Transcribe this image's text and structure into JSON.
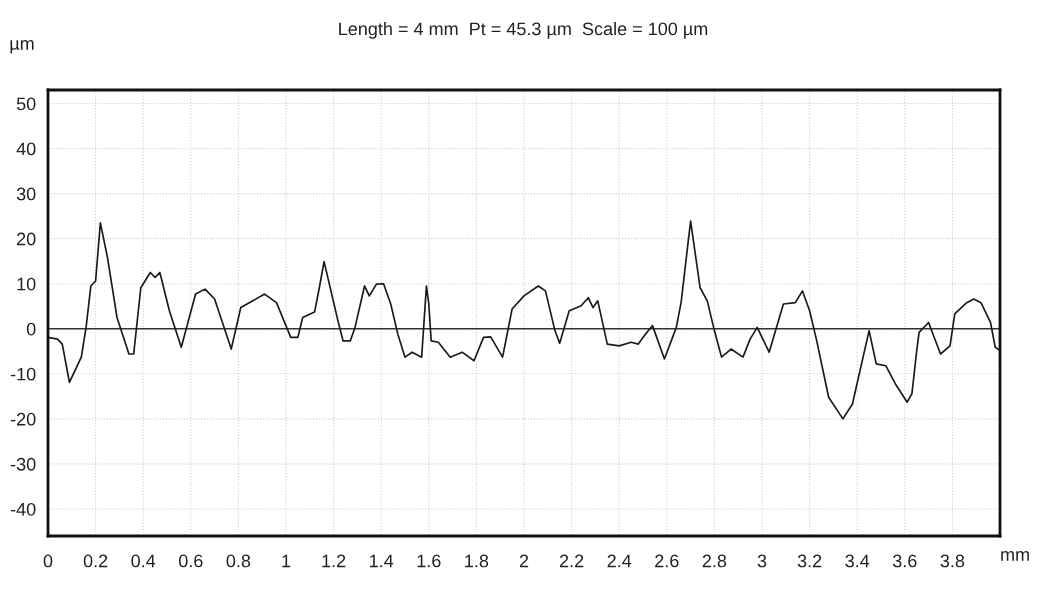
{
  "chart_data": {
    "type": "line",
    "title": "Length = 4 mm  Pt = 45.3 µm  Scale = 100 µm",
    "xlabel": "mm",
    "ylabel": "µm",
    "series": [
      {
        "color": "#1a1a1a",
        "x": [
          0,
          0.04,
          0.06,
          0.09,
          0.14,
          0.16,
          0.18,
          0.2,
          0.22,
          0.25,
          0.29,
          0.34,
          0.36,
          0.39,
          0.43,
          0.45,
          0.47,
          0.51,
          0.56,
          0.62,
          0.66,
          0.7,
          0.77,
          0.81,
          0.91,
          0.96,
          1.02,
          1.05,
          1.07,
          1.12,
          1.14,
          1.16,
          1.22,
          1.24,
          1.27,
          1.29,
          1.33,
          1.35,
          1.38,
          1.41,
          1.44,
          1.47,
          1.5,
          1.53,
          1.57,
          1.59,
          1.6,
          1.61,
          1.64,
          1.69,
          1.74,
          1.79,
          1.83,
          1.86,
          1.91,
          1.95,
          2.0,
          2.06,
          2.09,
          2.13,
          2.15,
          2.19,
          2.24,
          2.27,
          2.29,
          2.31,
          2.35,
          2.4,
          2.45,
          2.48,
          2.51,
          2.54,
          2.59,
          2.64,
          2.66,
          2.7,
          2.74,
          2.77,
          2.8,
          2.83,
          2.87,
          2.92,
          2.95,
          2.98,
          3.03,
          3.09,
          3.14,
          3.17,
          3.2,
          3.23,
          3.28,
          3.34,
          3.38,
          3.45,
          3.48,
          3.52,
          3.56,
          3.61,
          3.63,
          3.65,
          3.66,
          3.7,
          3.75,
          3.79,
          3.81,
          3.86,
          3.89,
          3.92,
          3.96,
          3.98,
          4.0
        ],
        "values": [
          -1.9,
          -2.3,
          -3.4,
          -11.9,
          -6.3,
          0.3,
          9.5,
          10.6,
          23.5,
          15.8,
          2.5,
          -5.6,
          -5.6,
          9.1,
          12.5,
          11.4,
          12.5,
          4.0,
          -4.1,
          7.7,
          8.8,
          6.6,
          -4.5,
          4.7,
          7.7,
          5.8,
          -1.9,
          -1.9,
          2.5,
          3.7,
          9.1,
          14.9,
          1.4,
          -2.7,
          -2.7,
          0.3,
          9.5,
          7.3,
          9.9,
          10.0,
          5.5,
          -1.2,
          -6.3,
          -5.2,
          -6.3,
          9.5,
          5.5,
          -2.7,
          -3.0,
          -6.3,
          -5.2,
          -7.1,
          -1.9,
          -1.8,
          -6.3,
          4.4,
          7.3,
          9.5,
          8.4,
          -0.4,
          -3.2,
          4.0,
          5.1,
          6.9,
          4.7,
          6.2,
          -3.4,
          -3.8,
          -3.0,
          -3.4,
          -1.2,
          0.7,
          -6.7,
          0.3,
          5.8,
          23.9,
          9.1,
          6.2,
          -0.4,
          -6.3,
          -4.5,
          -6.3,
          -2.3,
          0.3,
          -5.2,
          5.5,
          5.8,
          8.4,
          4.0,
          -2.7,
          -15.2,
          -20.0,
          -16.7,
          -0.4,
          -7.8,
          -8.2,
          -12.2,
          -16.3,
          -14.4,
          -4.9,
          -0.8,
          1.4,
          -5.6,
          -3.8,
          3.3,
          5.8,
          6.6,
          5.8,
          1.4,
          -4.1,
          -4.8
        ]
      }
    ],
    "xlim": [
      0,
      4
    ],
    "ylim": [
      -46,
      53
    ],
    "xticks": [
      0,
      0.2,
      0.4,
      0.6,
      0.8,
      1,
      1.2,
      1.4,
      1.6,
      1.8,
      2,
      2.2,
      2.4,
      2.6,
      2.8,
      3,
      3.2,
      3.4,
      3.6,
      3.8
    ],
    "yticks": [
      -40,
      -30,
      -20,
      -10,
      0,
      10,
      20,
      30,
      40,
      50
    ],
    "ref_lines": [
      {
        "axis": "y",
        "value": 0,
        "color": "#333333"
      }
    ],
    "grid": true,
    "line_style": "solid",
    "marker": "none",
    "legend": false
  }
}
